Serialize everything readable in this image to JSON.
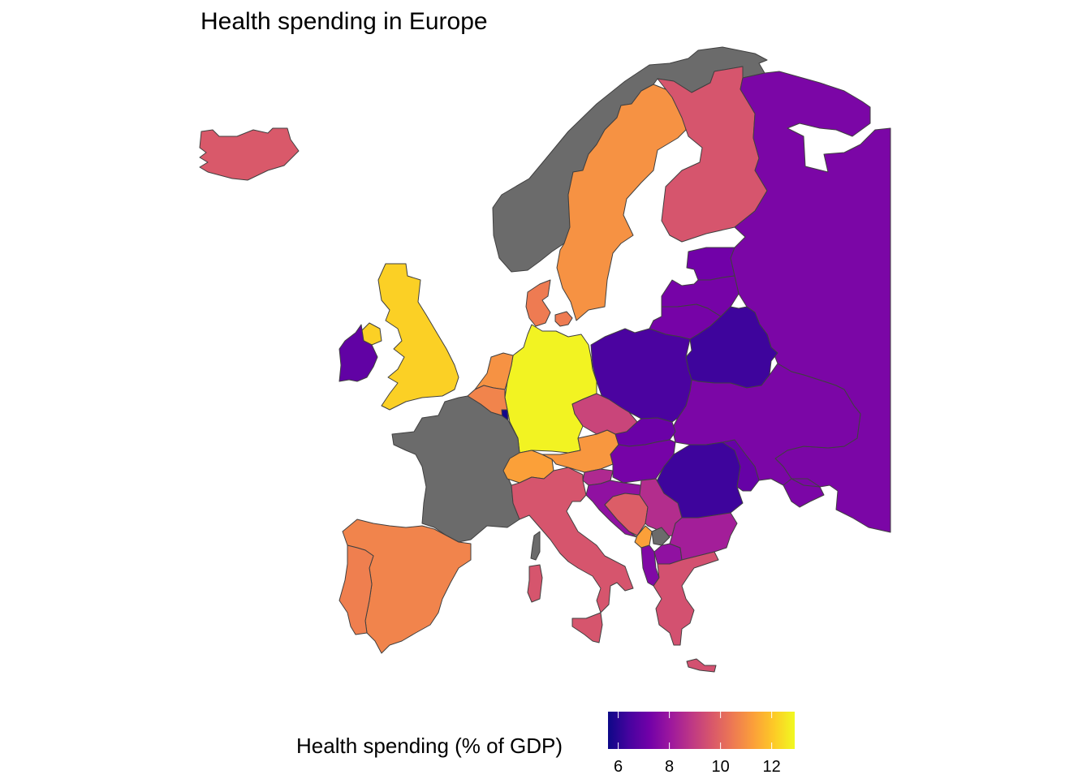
{
  "title": "Health spending in Europe",
  "legend": {
    "title": "Health spending (% of GDP)",
    "min": 5.6,
    "max": 12.9,
    "ticks": [
      "6",
      "8",
      "10",
      "12"
    ],
    "tick_values": [
      6,
      8,
      10,
      12
    ],
    "palette": [
      "#0d0887",
      "#46039f",
      "#7201a8",
      "#9c179e",
      "#bd3786",
      "#d8576b",
      "#ed7953",
      "#fb9f3a",
      "#fdca26",
      "#f0f921"
    ],
    "na_color": "#6b6b6b"
  },
  "regions": [
    {
      "name": "iceland",
      "value": 9.7
    },
    {
      "name": "norway",
      "value": null
    },
    {
      "name": "sweden",
      "value": 11.0
    },
    {
      "name": "finland",
      "value": 9.6
    },
    {
      "name": "russia",
      "value": 7.4
    },
    {
      "name": "estonia",
      "value": 7.2
    },
    {
      "name": "latvia",
      "value": 7.3
    },
    {
      "name": "lithuania",
      "value": 7.3
    },
    {
      "name": "belarus",
      "value": 6.3
    },
    {
      "name": "uk",
      "value": 12.2
    },
    {
      "name": "northern-ireland",
      "value": 12.2
    },
    {
      "name": "ireland",
      "value": 6.9
    },
    {
      "name": "denmark",
      "value": 10.5
    },
    {
      "name": "netherlands",
      "value": 11.0
    },
    {
      "name": "belgium",
      "value": 10.7
    },
    {
      "name": "luxembourg",
      "value": 5.7
    },
    {
      "name": "germany",
      "value": 12.8
    },
    {
      "name": "poland",
      "value": 6.5
    },
    {
      "name": "czechia",
      "value": 9.2
    },
    {
      "name": "slovakia",
      "value": 7.1
    },
    {
      "name": "ukraine",
      "value": 7.4
    },
    {
      "name": "moldova",
      "value": 7.0
    },
    {
      "name": "romania",
      "value": 6.3
    },
    {
      "name": "hungary",
      "value": 7.3
    },
    {
      "name": "austria",
      "value": 11.1
    },
    {
      "name": "switzerland",
      "value": 11.3
    },
    {
      "name": "france",
      "value": null
    },
    {
      "name": "spain",
      "value": 10.7
    },
    {
      "name": "portugal",
      "value": 10.6
    },
    {
      "name": "italy",
      "value": 9.6
    },
    {
      "name": "sardinia",
      "value": 9.6
    },
    {
      "name": "corsica",
      "value": null
    },
    {
      "name": "sicily",
      "value": 9.6
    },
    {
      "name": "slovenia",
      "value": 8.5
    },
    {
      "name": "croatia",
      "value": 7.8
    },
    {
      "name": "bosnia",
      "value": 9.8
    },
    {
      "name": "serbia",
      "value": 8.6
    },
    {
      "name": "montenegro",
      "value": 11.3
    },
    {
      "name": "kosovo",
      "value": null
    },
    {
      "name": "albania",
      "value": 7.5
    },
    {
      "name": "north-macedonia",
      "value": 7.8
    },
    {
      "name": "bulgaria",
      "value": 8.2
    },
    {
      "name": "greece",
      "value": 9.5
    },
    {
      "name": "crete",
      "value": 9.5
    }
  ]
}
